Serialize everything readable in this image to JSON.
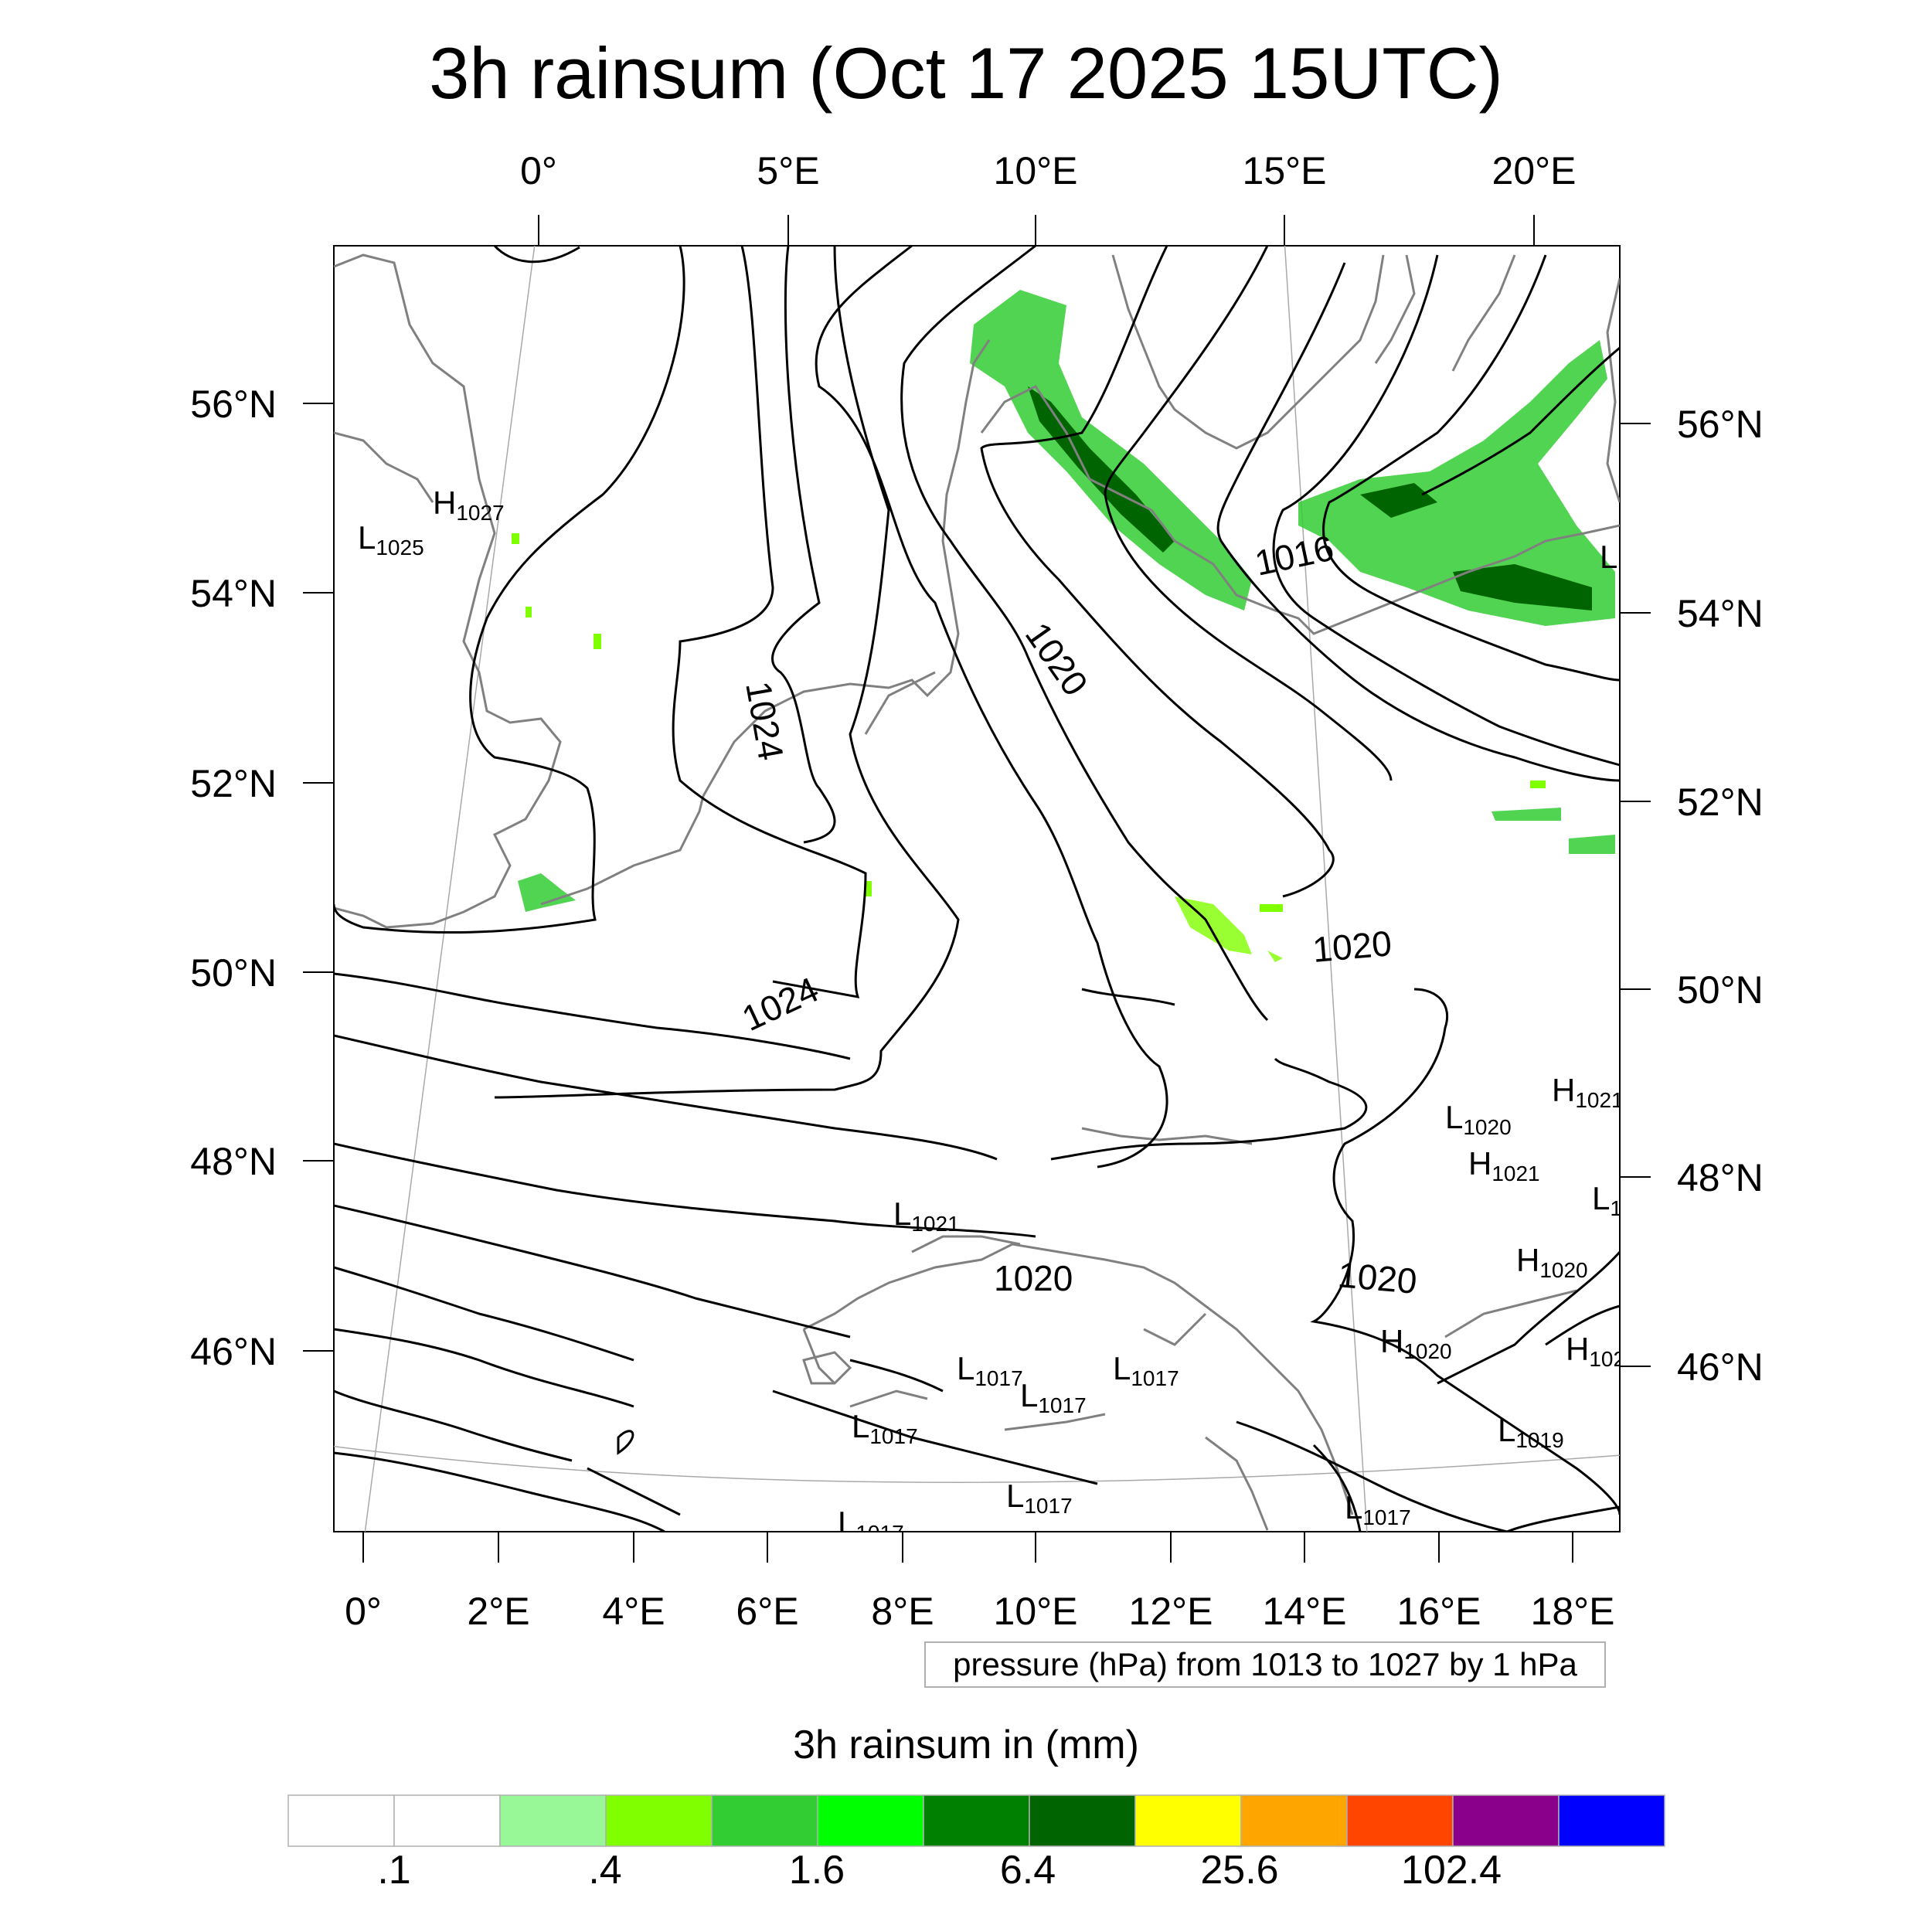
{
  "title": "3h rainsum (Oct 17 2025 15UTC)",
  "top_lon_labels": [
    "0°",
    "5°E",
    "10°E",
    "15°E",
    "20°E"
  ],
  "bottom_lon_labels": [
    "0°",
    "2°E",
    "4°E",
    "6°E",
    "8°E",
    "10°E",
    "12°E",
    "14°E",
    "16°E",
    "18°E"
  ],
  "left_lat_labels": [
    "56°N",
    "54°N",
    "52°N",
    "50°N",
    "48°N",
    "46°N"
  ],
  "right_lat_labels": [
    "56°N",
    "54°N",
    "52°N",
    "50°N",
    "48°N",
    "46°N"
  ],
  "contour_labels": [
    "1024",
    "1024",
    "1020",
    "1016",
    "1020",
    "1020",
    "1020"
  ],
  "pressure_centers": [
    {
      "type": "H",
      "value": "1027"
    },
    {
      "type": "L",
      "value": "1025"
    },
    {
      "type": "L",
      "value": "1021"
    },
    {
      "type": "L",
      "value": "1017"
    },
    {
      "type": "L",
      "value": "1017"
    },
    {
      "type": "L",
      "value": "1017"
    },
    {
      "type": "L",
      "value": "1017"
    },
    {
      "type": "L",
      "value": "1017"
    },
    {
      "type": "L",
      "value": "1017"
    },
    {
      "type": "L",
      "value": "1017"
    },
    {
      "type": "L",
      "value": "1020"
    },
    {
      "type": "H",
      "value": "1021"
    },
    {
      "type": "H",
      "value": "1021"
    },
    {
      "type": "H",
      "value": "1020"
    },
    {
      "type": "H",
      "value": "1020"
    },
    {
      "type": "L",
      "value": "1019"
    },
    {
      "type": "H",
      "value": "102"
    },
    {
      "type": "L",
      "value": "1"
    },
    {
      "type": "L",
      "value": "1"
    }
  ],
  "info_box": "pressure (hPa) from 1013 to 1027 by 1 hPa",
  "colorbar": {
    "title": "3h rainsum in (mm)",
    "colors": [
      "#ffffff",
      "#ffffff",
      "#98f898",
      "#80ff00",
      "#32cd32",
      "#00ff00",
      "#008000",
      "#006400",
      "#ffff00",
      "#ffa500",
      "#ff4500",
      "#8b008b",
      "#0000ff"
    ],
    "labels": [
      ".1",
      ".4",
      "1.6",
      "6.4",
      "25.6",
      "102.4"
    ]
  },
  "colors": {
    "contour": "#000000",
    "coastline": "#808080",
    "graticule": "#a9a9a9"
  }
}
